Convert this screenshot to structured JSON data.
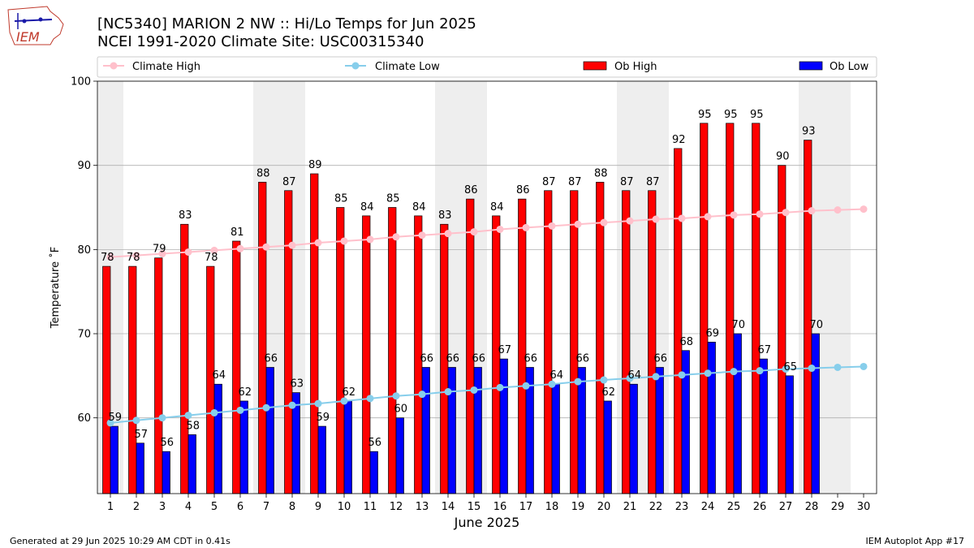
{
  "header": {
    "logo_text": "IEM",
    "title_line1": "[NC5340] MARION 2 NW :: Hi/Lo Temps for Jun 2025",
    "title_line2": "NCEI 1991-2020 Climate Site: USC00315340"
  },
  "footer": {
    "left": "Generated at 29 Jun 2025 10:29 AM CDT in 0.41s",
    "right": "IEM Autoplot App #17"
  },
  "chart_data": {
    "type": "bar",
    "title": "[NC5340] MARION 2 NW :: Hi/Lo Temps for Jun 2025",
    "subtitle": "NCEI 1991-2020 Climate Site: USC00315340",
    "xlabel": "June 2025",
    "ylabel": "Temperature ˚F",
    "ylim": [
      51,
      100
    ],
    "yticks": [
      60,
      70,
      80,
      90,
      100
    ],
    "grid": "horizontal",
    "legend_placement": "top",
    "categories": [
      "1",
      "2",
      "3",
      "4",
      "5",
      "6",
      "7",
      "8",
      "9",
      "10",
      "11",
      "12",
      "13",
      "14",
      "15",
      "16",
      "17",
      "18",
      "19",
      "20",
      "21",
      "22",
      "23",
      "24",
      "25",
      "26",
      "27",
      "28",
      "29",
      "30"
    ],
    "weekend_shading": [
      [
        1,
        1
      ],
      [
        7,
        8
      ],
      [
        14,
        15
      ],
      [
        21,
        22
      ],
      [
        28,
        29
      ]
    ],
    "series": [
      {
        "name": "Climate High",
        "kind": "line",
        "color": "#ffc0cb",
        "values": [
          79.1,
          79.3,
          79.5,
          79.7,
          79.9,
          80.1,
          80.3,
          80.5,
          80.8,
          81.0,
          81.2,
          81.5,
          81.7,
          81.9,
          82.1,
          82.4,
          82.6,
          82.8,
          83.0,
          83.2,
          83.4,
          83.6,
          83.7,
          83.9,
          84.1,
          84.2,
          84.4,
          84.6,
          84.7,
          84.8
        ]
      },
      {
        "name": "Climate Low",
        "kind": "line",
        "color": "#87ceeb",
        "values": [
          59.4,
          59.7,
          60.0,
          60.3,
          60.6,
          60.9,
          61.2,
          61.5,
          61.7,
          62.0,
          62.3,
          62.6,
          62.8,
          63.1,
          63.3,
          63.6,
          63.8,
          64.0,
          64.3,
          64.5,
          64.7,
          64.9,
          65.1,
          65.3,
          65.5,
          65.6,
          65.8,
          65.9,
          66.0,
          66.1
        ]
      },
      {
        "name": "Ob High",
        "kind": "bar",
        "color": "#ff0000",
        "values": [
          78,
          78,
          79,
          83,
          78,
          81,
          88,
          87,
          89,
          85,
          84,
          85,
          84,
          83,
          86,
          84,
          86,
          87,
          87,
          88,
          87,
          87,
          92,
          95,
          95,
          95,
          90,
          93,
          null,
          null
        ]
      },
      {
        "name": "Ob Low",
        "kind": "bar",
        "color": "#0000ff",
        "values": [
          59,
          57,
          56,
          58,
          64,
          62,
          66,
          63,
          59,
          62,
          56,
          60,
          66,
          66,
          66,
          67,
          66,
          64,
          66,
          62,
          64,
          66,
          68,
          69,
          70,
          67,
          65,
          70,
          null,
          null
        ]
      }
    ]
  }
}
